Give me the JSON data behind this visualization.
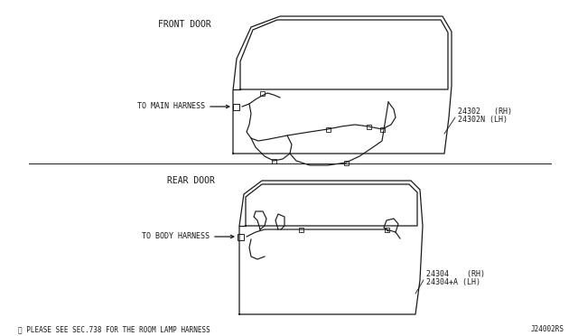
{
  "bg_color": "#ffffff",
  "fg_color": "#1a1a1a",
  "title_front": "FRONT DOOR",
  "title_rear": "REAR DOOR",
  "label_main": "TO MAIN HARNESS",
  "label_body": "TO BODY HARNESS",
  "label_24302_line1": "24302   (RH)",
  "label_24302_line2": "24302N (LH)",
  "label_24304_line1": "24304    (RH)",
  "label_24304_line2": "24304+A (LH)",
  "footnote": "※ PLEASE SEE SEC.738 FOR THE ROOM LAMP HARNESS",
  "diagram_id": "J24002RS",
  "font_size_title": 7,
  "font_size_label": 6,
  "font_size_note": 5.5
}
